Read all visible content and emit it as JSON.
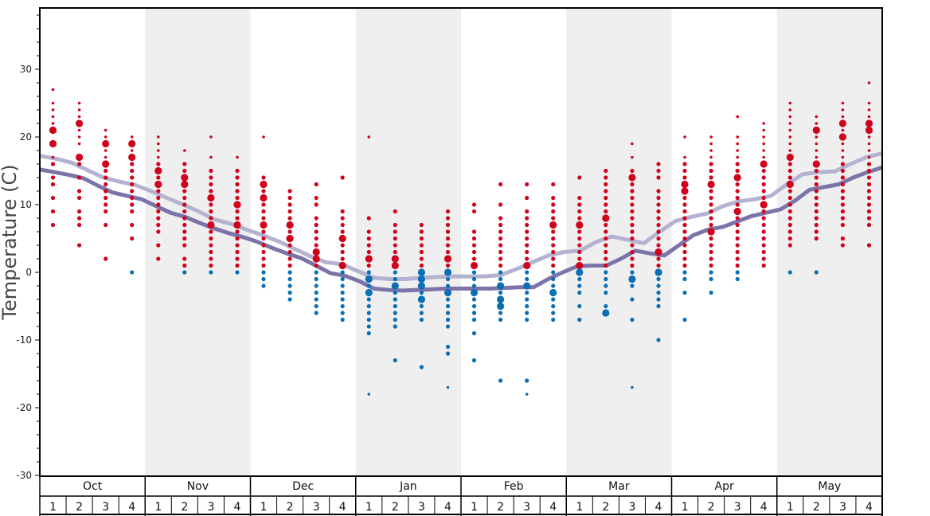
{
  "chart_data": {
    "type": "scatter",
    "title": "",
    "ylabel": "Temperature (C)",
    "xlabel": "",
    "ylim": [
      -30,
      39
    ],
    "y_ticks": [
      30,
      20,
      10,
      0,
      -10,
      -20,
      -30
    ],
    "months": [
      "Oct",
      "Nov",
      "Dec",
      "Jan",
      "Feb",
      "Mar",
      "Apr",
      "May"
    ],
    "weeks": [
      "1",
      "2",
      "3",
      "4"
    ],
    "colors": {
      "warm": "#d0021b",
      "cold": "#0a6fb4",
      "line_light": "#b3b3d1",
      "line_dark": "#7c74a8",
      "band": "#efefef"
    },
    "series": [
      {
        "color_role": "line_light",
        "values": [
          17.2,
          16.8,
          16.2,
          15.1,
          14.0,
          13.4,
          12.9,
          12.0,
          11.0,
          10.0,
          9.0,
          7.8,
          7.2,
          6.3,
          5.5,
          4.6,
          3.5,
          2.4,
          1.5,
          1.2,
          0.2,
          -0.8,
          -1.0,
          -1.0,
          -0.8,
          -0.7,
          -0.6,
          -0.6,
          -0.6,
          -0.4,
          0.5,
          1.5,
          2.5,
          3.0,
          3.2,
          4.5,
          5.3,
          4.8,
          4.3,
          6.0,
          7.6,
          8.2,
          8.7,
          9.8,
          10.5,
          10.8,
          11.3,
          13.0,
          14.5,
          14.8,
          14.9,
          16.0,
          17.0,
          17.6
        ]
      },
      {
        "color_role": "line_dark",
        "values": [
          15.2,
          14.8,
          14.4,
          13.9,
          12.8,
          11.8,
          11.3,
          10.8,
          9.8,
          8.8,
          8.2,
          7.3,
          6.5,
          5.8,
          5.2,
          4.5,
          3.6,
          2.8,
          2.1,
          1.0,
          -0.1,
          -0.5,
          -1.3,
          -2.4,
          -2.6,
          -2.7,
          -2.6,
          -2.5,
          -2.4,
          -2.4,
          -2.4,
          -2.4,
          -2.3,
          -2.2,
          -2.2,
          -1.0,
          0.0,
          0.9,
          1.0,
          1.0,
          2.0,
          3.2,
          2.8,
          2.5,
          4.0,
          5.5,
          6.3,
          6.7,
          7.5,
          8.3,
          8.8,
          9.3,
          10.6,
          12.2,
          12.6,
          13.0,
          14.0,
          14.8,
          15.5
        ]
      }
    ],
    "dot_weeks": [
      {
        "t": [
          27,
          25,
          24,
          23,
          22,
          21,
          19,
          17,
          16,
          14,
          13,
          11,
          9,
          7
        ],
        "big": [
          21,
          19
        ]
      },
      {
        "t": [
          25,
          24,
          23,
          22,
          21,
          20,
          19,
          17,
          16,
          14,
          12,
          11,
          9,
          8,
          7,
          4
        ],
        "big": [
          22,
          17
        ]
      },
      {
        "t": [
          21,
          20,
          19,
          18,
          17,
          16,
          15,
          14,
          13,
          12,
          11,
          10,
          9,
          7,
          2
        ],
        "big": [
          19,
          16
        ]
      },
      {
        "t": [
          20,
          19,
          18,
          17,
          16,
          15,
          14,
          13,
          12,
          11,
          10,
          9,
          7,
          5,
          0
        ],
        "big": [
          19,
          17
        ]
      },
      {
        "t": [
          20,
          19,
          18,
          17,
          16,
          15,
          14,
          13,
          12,
          11,
          10,
          9,
          8,
          7,
          6,
          4,
          2
        ],
        "big": [
          15,
          13
        ]
      },
      {
        "t": [
          18,
          16,
          15,
          14,
          13,
          12,
          11,
          10,
          9,
          8,
          7,
          6,
          5,
          4,
          2,
          1,
          0
        ],
        "big": [
          14,
          13
        ]
      },
      {
        "t": [
          20,
          17,
          15,
          14,
          13,
          12,
          11,
          10,
          9,
          8,
          7,
          6,
          5,
          4,
          3,
          2,
          1,
          0
        ],
        "big": [
          11,
          7
        ]
      },
      {
        "t": [
          17,
          15,
          14,
          13,
          12,
          11,
          10,
          9,
          8,
          7,
          6,
          5,
          4,
          3,
          2,
          1,
          0
        ],
        "big": [
          10,
          7
        ]
      },
      {
        "t": [
          20,
          14,
          13,
          12,
          11,
          10,
          9,
          8,
          7,
          6,
          5,
          4,
          3,
          2,
          1,
          0,
          -1,
          -2
        ],
        "big": [
          13,
          11,
          7
        ]
      },
      {
        "t": [
          12,
          11,
          10,
          9,
          8,
          7,
          6,
          5,
          4,
          3,
          2,
          1,
          0,
          -1,
          -2,
          -3,
          -4
        ],
        "big": [
          7,
          5
        ]
      },
      {
        "t": [
          13,
          11,
          10,
          8,
          7,
          6,
          5,
          4,
          3,
          2,
          1,
          0,
          -1,
          -2,
          -3,
          -4,
          -5,
          -6
        ],
        "big": [
          3,
          2
        ]
      },
      {
        "t": [
          14,
          9,
          8,
          7,
          6,
          5,
          4,
          3,
          2,
          1,
          0,
          -1,
          -2,
          -3,
          -4,
          -5,
          -6,
          -7
        ],
        "big": [
          5,
          1
        ]
      },
      {
        "t": [
          20,
          8,
          6,
          5,
          4,
          3,
          2,
          1,
          0,
          -1,
          -2,
          -3,
          -4,
          -5,
          -6,
          -7,
          -8,
          -9,
          -18
        ],
        "big": [
          2,
          -1,
          -3
        ]
      },
      {
        "t": [
          9,
          7,
          6,
          5,
          4,
          3,
          2,
          1,
          0,
          -1,
          -2,
          -3,
          -4,
          -5,
          -6,
          -7,
          -8,
          -13
        ],
        "big": [
          2,
          1,
          -2
        ]
      },
      {
        "t": [
          7,
          6,
          5,
          4,
          3,
          2,
          1,
          0,
          -1,
          -2,
          -3,
          -4,
          -5,
          -6,
          -7,
          -14
        ],
        "big": [
          0,
          -1,
          -2,
          -4
        ]
      },
      {
        "t": [
          9,
          8,
          7,
          6,
          5,
          4,
          3,
          2,
          1,
          0,
          -1,
          -2,
          -3,
          -4,
          -5,
          -6,
          -7,
          -8,
          -11,
          -12,
          -17
        ],
        "big": [
          2,
          0,
          -3
        ]
      },
      {
        "t": [
          10,
          9,
          6,
          5,
          4,
          3,
          2,
          1,
          0,
          -1,
          -2,
          -3,
          -4,
          -5,
          -6,
          -7,
          -9,
          -13
        ],
        "big": [
          1,
          -3
        ]
      },
      {
        "t": [
          13,
          10,
          8,
          7,
          6,
          5,
          4,
          3,
          2,
          1,
          0,
          -1,
          -2,
          -3,
          -4,
          -5,
          -6,
          -7,
          -16
        ],
        "big": [
          -2,
          -4,
          -5
        ]
      },
      {
        "t": [
          13,
          11,
          9,
          8,
          7,
          6,
          5,
          4,
          3,
          2,
          1,
          0,
          -1,
          -2,
          -3,
          -4,
          -5,
          -6,
          -7,
          -16,
          -18
        ],
        "big": [
          1,
          -2
        ]
      },
      {
        "t": [
          13,
          11,
          10,
          9,
          8,
          7,
          6,
          5,
          4,
          3,
          2,
          1,
          0,
          -1,
          -2,
          -3,
          -4,
          -5,
          -6,
          -7
        ],
        "big": [
          7,
          -3
        ]
      },
      {
        "t": [
          14,
          11,
          10,
          9,
          8,
          7,
          6,
          5,
          4,
          3,
          2,
          1,
          0,
          -1,
          -2,
          -3,
          -5,
          -7
        ],
        "big": [
          7,
          1,
          0
        ]
      },
      {
        "t": [
          15,
          14,
          13,
          12,
          11,
          10,
          9,
          8,
          7,
          6,
          5,
          4,
          3,
          2,
          1,
          0,
          -1,
          -2,
          -3,
          -5,
          -6
        ],
        "big": [
          8,
          -6
        ]
      },
      {
        "t": [
          19,
          17,
          15,
          14,
          13,
          12,
          11,
          10,
          9,
          8,
          7,
          6,
          5,
          4,
          3,
          2,
          1,
          0,
          -1,
          -2,
          -4,
          -7,
          -17
        ],
        "big": [
          14,
          -1
        ]
      },
      {
        "t": [
          16,
          15,
          14,
          12,
          11,
          10,
          9,
          8,
          7,
          6,
          5,
          4,
          3,
          2,
          1,
          0,
          -1,
          -2,
          -3,
          -4,
          -5,
          -10
        ],
        "big": [
          3,
          0
        ]
      },
      {
        "t": [
          20,
          17,
          16,
          15,
          14,
          13,
          12,
          11,
          10,
          9,
          8,
          7,
          6,
          5,
          4,
          3,
          2,
          1,
          0,
          -1,
          -3,
          -7
        ],
        "big": [
          13,
          12
        ]
      },
      {
        "t": [
          20,
          19,
          18,
          17,
          16,
          15,
          14,
          13,
          12,
          11,
          10,
          9,
          8,
          7,
          6,
          5,
          4,
          3,
          2,
          1,
          0,
          -1,
          -3
        ],
        "big": [
          13,
          6
        ]
      },
      {
        "t": [
          23,
          20,
          19,
          18,
          17,
          16,
          15,
          14,
          13,
          12,
          11,
          10,
          9,
          8,
          7,
          6,
          5,
          4,
          3,
          2,
          1,
          0,
          -1
        ],
        "big": [
          14,
          9
        ]
      },
      {
        "t": [
          22,
          21,
          20,
          19,
          18,
          17,
          16,
          15,
          14,
          13,
          12,
          11,
          10,
          9,
          8,
          7,
          6,
          5,
          4,
          3,
          2,
          1
        ],
        "big": [
          16,
          10
        ]
      },
      {
        "t": [
          25,
          24,
          23,
          22,
          21,
          20,
          19,
          18,
          17,
          16,
          15,
          14,
          13,
          12,
          11,
          10,
          9,
          8,
          7,
          6,
          5,
          4,
          0
        ],
        "big": [
          17,
          13
        ]
      },
      {
        "t": [
          23,
          22,
          21,
          20,
          19,
          18,
          17,
          16,
          15,
          14,
          13,
          12,
          11,
          10,
          9,
          8,
          7,
          6,
          5,
          0
        ],
        "big": [
          21,
          16
        ]
      },
      {
        "t": [
          25,
          24,
          23,
          22,
          21,
          20,
          19,
          18,
          17,
          16,
          15,
          14,
          13,
          12,
          11,
          10,
          9,
          8,
          7,
          5,
          4
        ],
        "big": [
          22,
          20
        ]
      },
      {
        "t": [
          28,
          25,
          24,
          23,
          22,
          21,
          20,
          19,
          18,
          17,
          16,
          15,
          14,
          13,
          12,
          11,
          10,
          9,
          8,
          7,
          4
        ],
        "big": [
          22,
          21
        ]
      }
    ]
  }
}
